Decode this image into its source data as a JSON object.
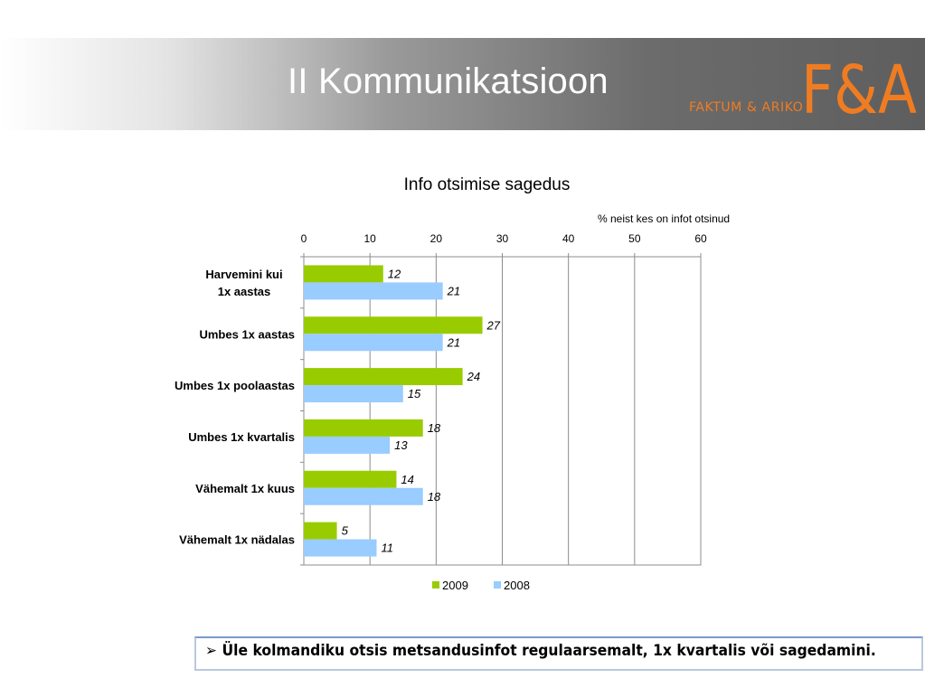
{
  "slide": {
    "title": "II Kommunikatsioon",
    "logo_text": "FAKTUM & ARIKO",
    "logo_mark": "F&A",
    "brand_color": "#f07c22"
  },
  "chart_data": {
    "type": "bar",
    "orientation": "horizontal",
    "title": "Info otsimise sagedus",
    "unit_label": "% neist kes on infot otsinud",
    "categories": [
      "Harvemini kui 1x aastas",
      "Umbes 1x aastas",
      "Umbes 1x poolaastas",
      "Umbes 1x kvartalis",
      "Vähemalt 1x kuus",
      "Vähemalt 1x nädalas"
    ],
    "series": [
      {
        "name": "2009",
        "color": "#99cc00",
        "values": [
          12,
          27,
          24,
          18,
          14,
          5
        ]
      },
      {
        "name": "2008",
        "color": "#99ccff",
        "values": [
          21,
          21,
          15,
          13,
          18,
          11
        ]
      }
    ],
    "xlim": [
      0,
      60
    ],
    "xticks": [
      "0",
      "10",
      "20",
      "30",
      "40",
      "50",
      "60"
    ],
    "grid": true,
    "axis_position": "top",
    "legend_position": "bottom"
  },
  "footer": {
    "bullet": "➢",
    "text": "Üle kolmandiku otsis metsandusinfot  regulaarsemalt, 1x kvartalis või sagedamini."
  }
}
